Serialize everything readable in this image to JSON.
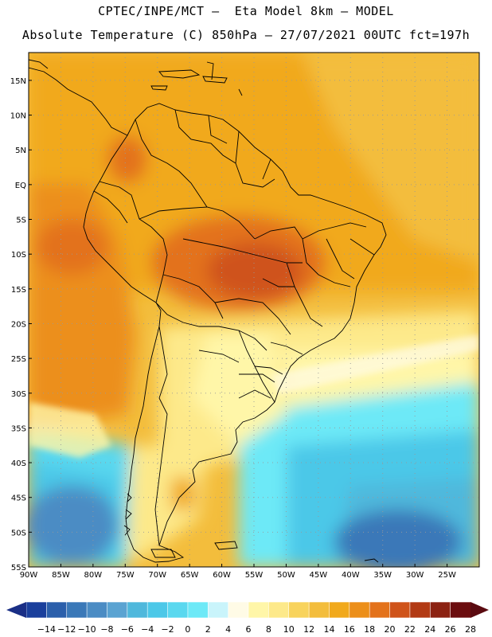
{
  "header": {
    "title_line1": "CPTEC/INPE/MCT –  Eta Model 8km – MODEL",
    "title_line2": "Absolute Temperature (C) 850hPa – 27/07/2021 00UTC fct=197h"
  },
  "map": {
    "lat_labels": [
      "15N",
      "10N",
      "5N",
      "EQ",
      "5S",
      "10S",
      "15S",
      "20S",
      "25S",
      "30S",
      "35S",
      "40S",
      "45S",
      "50S",
      "55S"
    ],
    "lon_labels": [
      "90W",
      "85W",
      "80W",
      "75W",
      "70W",
      "65W",
      "60W",
      "55W",
      "50W",
      "45W",
      "40W",
      "35W",
      "30W",
      "25W"
    ],
    "lon_range": [
      -90,
      -20
    ],
    "lat_range": [
      -55,
      19
    ]
  },
  "colorbar": {
    "labels": [
      "-14",
      "-12",
      "-10",
      "-8",
      "-6",
      "-4",
      "-2",
      "0",
      "2",
      "4",
      "6",
      "8",
      "10",
      "12",
      "14",
      "16",
      "18",
      "20",
      "22",
      "24",
      "26",
      "28"
    ],
    "colors": [
      "#1a3f9c",
      "#2b5fab",
      "#3a78b8",
      "#4b8cc4",
      "#5aa3d2",
      "#4fb8dc",
      "#4cc8e8",
      "#5ad8ef",
      "#6de9f7",
      "#c9f4fb",
      "#fffbe6",
      "#fff6a8",
      "#fde98a",
      "#f8d35c",
      "#f3bd3c",
      "#f1a91c",
      "#ec8f1a",
      "#e3721b",
      "#cf531a",
      "#b23a14",
      "#8c2212",
      "#6b0d0f"
    ],
    "end_left": "#1a2f86",
    "end_right": "#5a0a10"
  }
}
